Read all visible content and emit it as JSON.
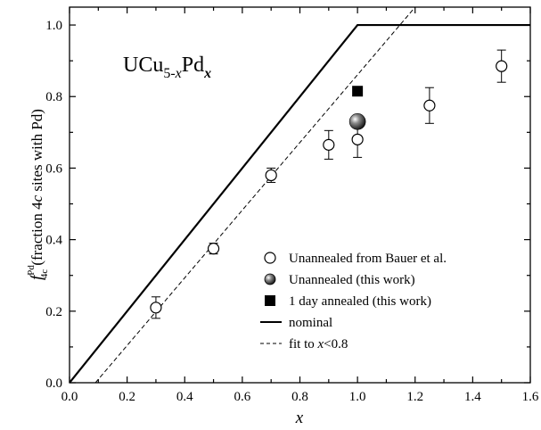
{
  "chart_data": {
    "type": "scatter",
    "title_parts": {
      "base": "UCu",
      "sub": "5-",
      "sub_var": "x",
      "mid": "Pd",
      "sub2": "x"
    },
    "xlabel": "x",
    "ylabel_parts": {
      "f": "f",
      "sup": "Pd",
      "sub": "4c",
      "rest_prefix": "(fraction 4",
      "rest_italic": "c",
      "rest_suffix": " sites with Pd)"
    },
    "xlim": [
      0.0,
      1.6
    ],
    "ylim": [
      0.0,
      1.05
    ],
    "xticks": [
      "0.0",
      "0.2",
      "0.4",
      "0.6",
      "0.8",
      "1.0",
      "1.2",
      "1.4",
      "1.6"
    ],
    "xtick_values": [
      0.0,
      0.2,
      0.4,
      0.6,
      0.8,
      1.0,
      1.2,
      1.4,
      1.6
    ],
    "yticks": [
      "0.0",
      "0.2",
      "0.4",
      "0.6",
      "0.8",
      "1.0"
    ],
    "ytick_values": [
      0.0,
      0.2,
      0.4,
      0.6,
      0.8,
      1.0
    ],
    "grid": false,
    "legend_placement": "lower-right",
    "series": [
      {
        "name": "Unannealed from Bauer et al.",
        "marker": "open-circle",
        "points": [
          {
            "x": 0.3,
            "y": 0.21,
            "err": 0.03
          },
          {
            "x": 0.5,
            "y": 0.375,
            "err": 0.015
          },
          {
            "x": 0.7,
            "y": 0.58,
            "err": 0.02
          },
          {
            "x": 0.9,
            "y": 0.665,
            "err": 0.04
          },
          {
            "x": 1.0,
            "y": 0.68,
            "err": 0.05
          },
          {
            "x": 1.25,
            "y": 0.775,
            "err": 0.05
          },
          {
            "x": 1.5,
            "y": 0.885,
            "err": 0.045
          }
        ]
      },
      {
        "name": "Unannealed (this work)",
        "marker": "shaded-sphere",
        "points": [
          {
            "x": 1.0,
            "y": 0.73
          }
        ]
      },
      {
        "name": "1 day annealed (this work)",
        "marker": "filled-square",
        "points": [
          {
            "x": 1.0,
            "y": 0.815
          }
        ]
      },
      {
        "name": "nominal",
        "marker": "solid-line",
        "points": [
          {
            "x": 0.0,
            "y": 0.0
          },
          {
            "x": 1.0,
            "y": 1.0
          },
          {
            "x": 1.6,
            "y": 1.0
          }
        ]
      },
      {
        "name_prefix": "fit to ",
        "name_italic": "x",
        "name_suffix": "<0.8",
        "marker": "dashed-line",
        "points": [
          {
            "x": 0.09,
            "y": 0.0
          },
          {
            "x": 1.2,
            "y": 1.05
          }
        ]
      }
    ]
  }
}
